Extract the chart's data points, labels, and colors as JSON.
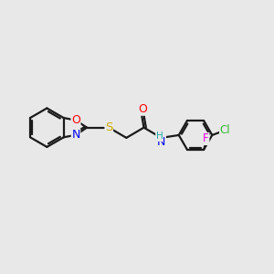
{
  "bg_color": "#e8e8e8",
  "bond_color": "#1a1a1a",
  "line_width": 1.6,
  "atom_colors": {
    "O": "#ff0000",
    "N": "#0000ee",
    "S": "#ccaa00",
    "Cl": "#33bb33",
    "F": "#ee00ee",
    "C": "#1a1a1a",
    "H": "#22aaaa"
  },
  "font_size": 8.5,
  "fig_width": 3.0,
  "fig_height": 3.0,
  "dpi": 100
}
